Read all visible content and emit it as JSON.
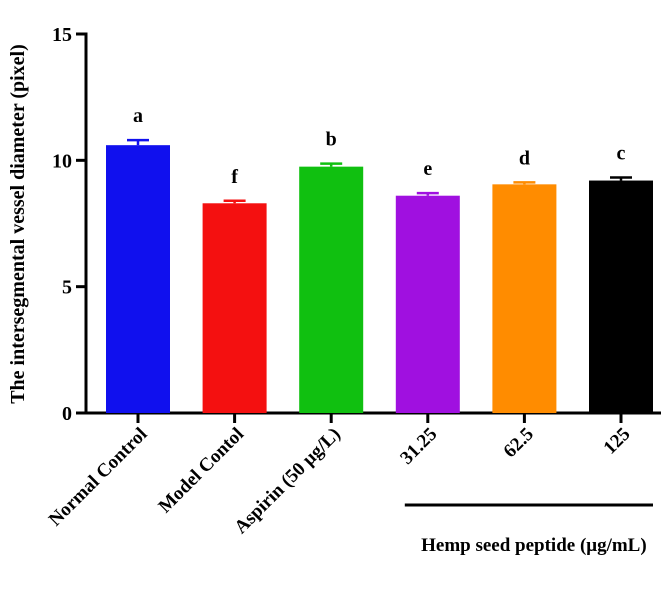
{
  "chart_data": {
    "type": "bar",
    "title": "",
    "xlabel": "",
    "ylabel": "The intersegmental vessel diameter (pixel)",
    "ylim": [
      0,
      15
    ],
    "yticks": [
      0,
      5,
      10,
      15
    ],
    "grid": false,
    "categories": [
      "Normal Control",
      "Model Contol",
      "Aspirin (50 μg/L)",
      "31.25",
      "62.5",
      "125"
    ],
    "values": [
      10.6,
      8.3,
      9.75,
      8.6,
      9.05,
      9.2
    ],
    "errors": [
      0.2,
      0.1,
      0.12,
      0.1,
      0.08,
      0.12
    ],
    "significance": [
      "a",
      "f",
      "b",
      "e",
      "d",
      "c"
    ],
    "colors": [
      "#1010EE",
      "#F41010",
      "#10C010",
      "#A010E0",
      "#FF8C00",
      "#000000"
    ],
    "group_label": {
      "text": "Hemp seed peptide (μg/mL)",
      "categories": [
        "31.25",
        "62.5",
        "125"
      ]
    }
  }
}
